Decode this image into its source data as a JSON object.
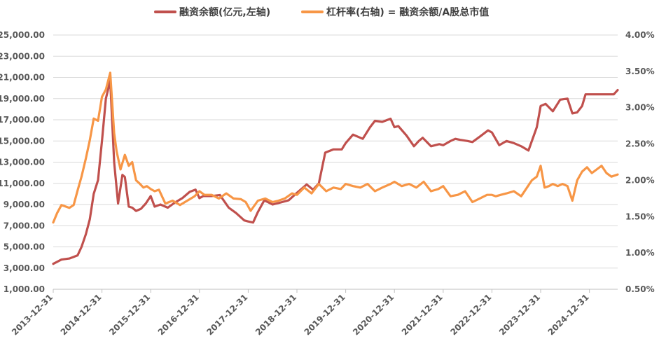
{
  "chart_data": {
    "type": "line",
    "legend_position": "top-center",
    "grid": "horizontal",
    "colors": {
      "financing": "#C0504D",
      "leverage": "#F79646",
      "grid": "#D9D9D9",
      "axis": "#BFBFBF",
      "text": "#595959"
    },
    "x_ticks": [
      "2013-12-31",
      "2014-12-31",
      "2015-12-31",
      "2016-12-31",
      "2017-12-31",
      "2018-12-31",
      "2019-12-31",
      "2020-12-31",
      "2021-12-31",
      "2022-12-31",
      "2023-12-31",
      "2024-12-31"
    ],
    "y_left": {
      "min": 1000,
      "max": 25000,
      "tick_labels": [
        "1,000.00",
        "3,000.00",
        "5,000.00",
        "7,000.00",
        "9,000.00",
        "11,000.00",
        "13,000.00",
        "15,000.00",
        "17,000.00",
        "19,000.00",
        "21,000.00",
        "23,000.00",
        "25,000.00"
      ]
    },
    "y_right": {
      "min": 0.5,
      "max": 4.0,
      "unit": "%",
      "tick_labels": [
        "0.50%",
        "1.00%",
        "1.50%",
        "2.00%",
        "2.50%",
        "3.00%",
        "3.50%",
        "4.00%"
      ]
    },
    "series": [
      {
        "name": "融资余额(亿元,左轴)",
        "axis": "left",
        "x": [
          2014.0,
          2014.17,
          2014.33,
          2014.5,
          2014.58,
          2014.67,
          2014.75,
          2014.83,
          2014.92,
          2015.0,
          2015.08,
          2015.17,
          2015.25,
          2015.33,
          2015.42,
          2015.47,
          2015.55,
          2015.62,
          2015.7,
          2015.8,
          2015.9,
          2016.0,
          2016.08,
          2016.2,
          2016.35,
          2016.5,
          2016.65,
          2016.8,
          2016.92,
          2017.0,
          2017.08,
          2017.25,
          2017.42,
          2017.6,
          2017.75,
          2017.92,
          2018.0,
          2018.1,
          2018.2,
          2018.33,
          2018.5,
          2018.67,
          2018.83,
          2018.95,
          2019.0,
          2019.1,
          2019.2,
          2019.33,
          2019.45,
          2019.58,
          2019.75,
          2019.92,
          2020.0,
          2020.15,
          2020.25,
          2020.35,
          2020.5,
          2020.6,
          2020.75,
          2020.92,
          2021.0,
          2021.08,
          2021.25,
          2021.4,
          2021.5,
          2021.58,
          2021.75,
          2021.92,
          2022.0,
          2022.15,
          2022.25,
          2022.35,
          2022.5,
          2022.6,
          2022.75,
          2022.92,
          2023.0,
          2023.15,
          2023.3,
          2023.45,
          2023.6,
          2023.75,
          2023.92,
          2024.0,
          2024.1,
          2024.25,
          2024.4,
          2024.55,
          2024.65,
          2024.75,
          2024.85,
          2024.92,
          2025.0,
          2025.1,
          2025.2,
          2025.35,
          2025.5,
          2025.58
        ],
        "y": [
          3400,
          3800,
          3900,
          4200,
          5000,
          6200,
          7600,
          10000,
          11300,
          15000,
          19000,
          20700,
          13000,
          9100,
          11800,
          11600,
          8800,
          8700,
          8400,
          8600,
          9100,
          9800,
          8800,
          9000,
          8700,
          9200,
          9600,
          10200,
          10400,
          9600,
          9800,
          9800,
          9900,
          8700,
          8200,
          7500,
          7400,
          7300,
          8300,
          9400,
          9000,
          9200,
          9400,
          9900,
          10100,
          10500,
          10900,
          10400,
          11000,
          13900,
          14200,
          14200,
          14800,
          15600,
          15400,
          15200,
          16300,
          16900,
          16800,
          17100,
          16300,
          16400,
          15500,
          14500,
          15000,
          15300,
          14500,
          14700,
          14600,
          15000,
          15200,
          15100,
          15000,
          14900,
          15400,
          16000,
          15800,
          14600,
          15000,
          14800,
          14500,
          14100,
          16300,
          18300,
          18500,
          17800,
          18900,
          19000,
          17600,
          17700,
          18300,
          19400,
          19400,
          19400,
          19400,
          19400,
          19400,
          19800
        ]
      },
      {
        "name": "杠杆率(右轴) = 融资余额/A股总市值",
        "axis": "right",
        "x": [
          2014.0,
          2014.08,
          2014.17,
          2014.25,
          2014.33,
          2014.42,
          2014.5,
          2014.58,
          2014.67,
          2014.75,
          2014.83,
          2014.92,
          2015.0,
          2015.08,
          2015.17,
          2015.25,
          2015.3,
          2015.38,
          2015.47,
          2015.55,
          2015.62,
          2015.7,
          2015.78,
          2015.85,
          2015.92,
          2016.0,
          2016.08,
          2016.17,
          2016.3,
          2016.45,
          2016.6,
          2016.75,
          2016.9,
          2017.0,
          2017.1,
          2017.25,
          2017.4,
          2017.55,
          2017.7,
          2017.85,
          2017.95,
          2018.05,
          2018.2,
          2018.35,
          2018.5,
          2018.62,
          2018.75,
          2018.9,
          2019.0,
          2019.15,
          2019.3,
          2019.45,
          2019.6,
          2019.75,
          2019.9,
          2020.0,
          2020.15,
          2020.3,
          2020.45,
          2020.6,
          2020.75,
          2020.92,
          2021.0,
          2021.15,
          2021.3,
          2021.45,
          2021.6,
          2021.75,
          2021.9,
          2022.0,
          2022.15,
          2022.3,
          2022.45,
          2022.6,
          2022.75,
          2022.9,
          2023.0,
          2023.08,
          2023.18,
          2023.3,
          2023.45,
          2023.6,
          2023.72,
          2023.82,
          2023.92,
          2024.0,
          2024.08,
          2024.17,
          2024.25,
          2024.35,
          2024.45,
          2024.55,
          2024.65,
          2024.75,
          2024.85,
          2024.95,
          2025.05,
          2025.15,
          2025.25,
          2025.35,
          2025.45,
          2025.58
        ],
        "y": [
          1.42,
          1.55,
          1.66,
          1.64,
          1.62,
          1.66,
          1.86,
          2.05,
          2.3,
          2.55,
          2.85,
          2.82,
          3.15,
          3.25,
          3.48,
          2.65,
          2.4,
          2.15,
          2.35,
          2.2,
          2.25,
          2.0,
          1.95,
          1.9,
          1.92,
          1.88,
          1.85,
          1.87,
          1.68,
          1.72,
          1.66,
          1.72,
          1.78,
          1.85,
          1.8,
          1.8,
          1.75,
          1.82,
          1.75,
          1.74,
          1.7,
          1.58,
          1.72,
          1.75,
          1.7,
          1.72,
          1.75,
          1.82,
          1.8,
          1.9,
          1.82,
          1.95,
          1.85,
          1.9,
          1.88,
          1.95,
          1.92,
          1.9,
          1.95,
          1.85,
          1.9,
          1.95,
          1.98,
          1.92,
          1.95,
          1.9,
          1.98,
          1.85,
          1.88,
          1.92,
          1.78,
          1.8,
          1.85,
          1.7,
          1.75,
          1.8,
          1.8,
          1.78,
          1.8,
          1.82,
          1.85,
          1.78,
          1.9,
          2.0,
          2.05,
          2.2,
          1.9,
          1.92,
          1.95,
          1.92,
          1.95,
          1.92,
          1.72,
          2.0,
          2.12,
          2.18,
          2.1,
          2.15,
          2.2,
          2.1,
          2.05,
          2.08
        ]
      }
    ]
  }
}
